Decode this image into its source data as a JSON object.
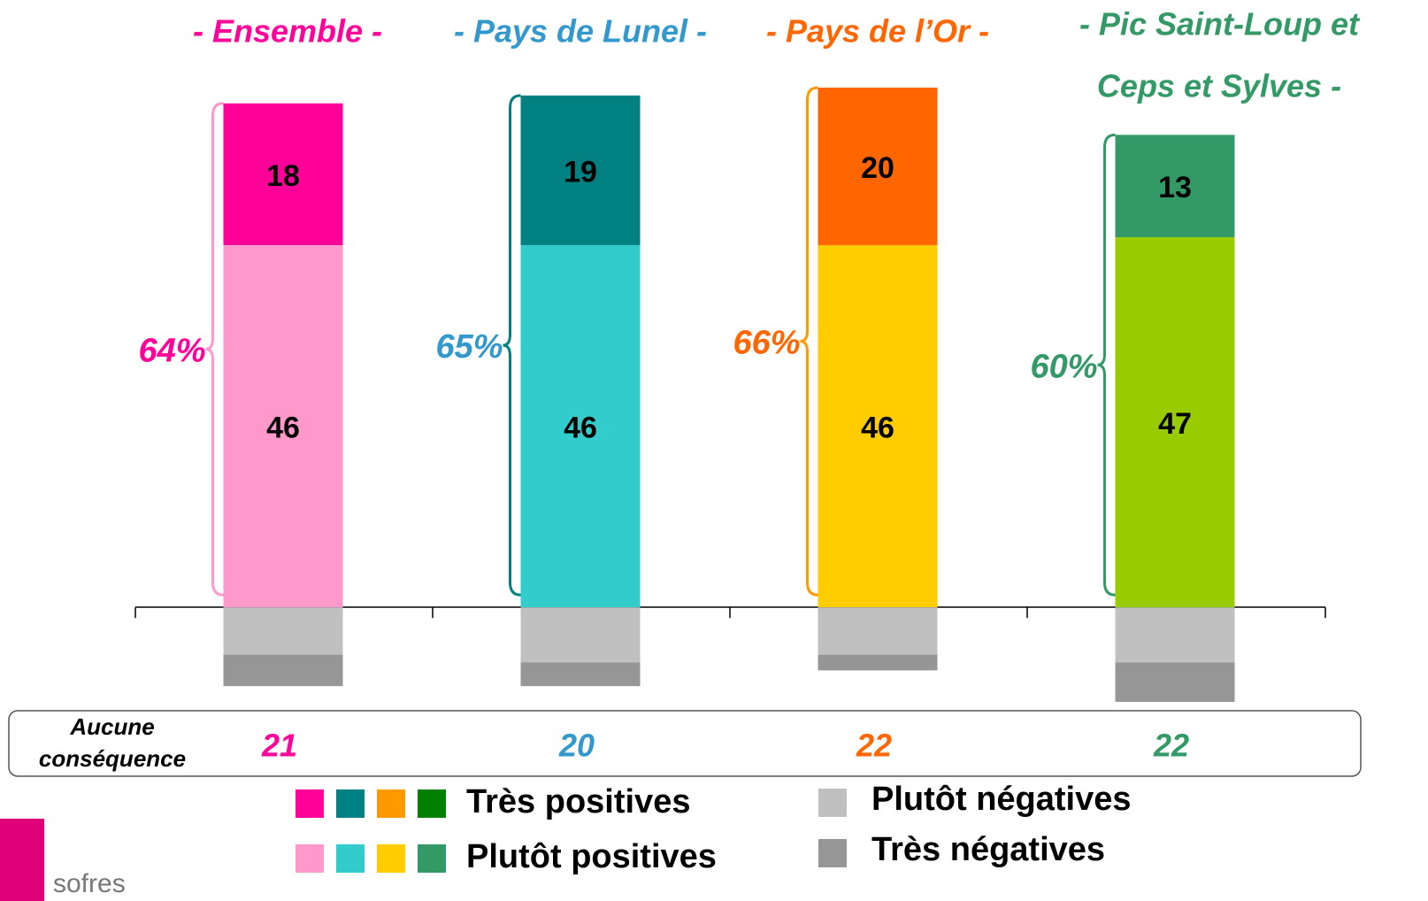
{
  "chart_data": {
    "type": "stacked_bar",
    "categories": [
      [
        "- Ensemble -"
      ],
      [
        "- Pays de Lunel -"
      ],
      [
        "- Pays de l’Or -"
      ],
      [
        "- Pic Saint-Loup et",
        "Ceps et Sylves -"
      ]
    ],
    "category_colors": [
      "#ff0099",
      "#3399cc",
      "#ff6600",
      "#339966"
    ],
    "series": [
      {
        "name": "Très positives",
        "colors": [
          "#ff0099",
          "#008080",
          "#ff6600",
          "#339966"
        ],
        "legend_colors": [
          "#ff0099",
          "#008080",
          "#ff9900",
          "#008000"
        ],
        "values": [
          18,
          19,
          20,
          13
        ]
      },
      {
        "name": "Plutôt positives",
        "colors": [
          "#ff99cc",
          "#33cccc",
          "#ffcc00",
          "#99cc00"
        ],
        "legend_colors": [
          "#ff99cc",
          "#33cccc",
          "#ffcc00",
          "#339966"
        ],
        "values": [
          46,
          46,
          46,
          47
        ]
      },
      {
        "name": "Plutôt négatives",
        "color": "#c0c0c0",
        "values": [
          -6,
          -7,
          -6,
          -7
        ]
      },
      {
        "name": "Très négatives",
        "color": "#969696",
        "values": [
          -4,
          -3,
          -2,
          -5
        ]
      }
    ],
    "totals": [
      64,
      65,
      66,
      60
    ],
    "totals_labels": [
      "64%",
      "65%",
      "66%",
      "60%"
    ],
    "brace_colors": [
      "#ff99cc",
      "#008080",
      "#ff9900",
      "#339966"
    ],
    "none_label": [
      "Aucune",
      "conséquence"
    ],
    "none_values": [
      21,
      20,
      22,
      22
    ],
    "ylim": [
      -12,
      66
    ],
    "logo": "sofres"
  }
}
